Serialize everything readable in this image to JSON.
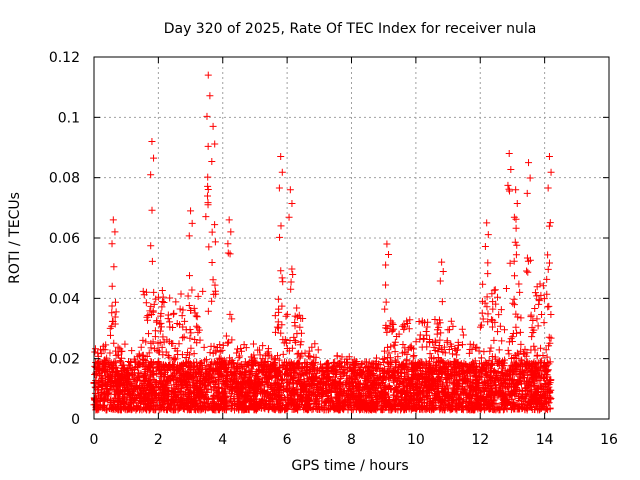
{
  "chart_data": {
    "type": "scatter",
    "title": "Day 320 of 2025, Rate Of TEC Index for receiver nula",
    "xlabel": "GPS time / hours",
    "ylabel": "ROTI / TECUs",
    "xlim": [
      0,
      16
    ],
    "ylim": [
      0,
      0.12
    ],
    "xticks": [
      0,
      2,
      4,
      6,
      8,
      10,
      12,
      14,
      16
    ],
    "yticks": [
      0,
      0.02,
      0.04,
      0.06,
      0.08,
      0.1,
      0.12
    ],
    "xtick_labels": [
      "0",
      "2",
      "4",
      "6",
      "8",
      "10",
      "12",
      "14",
      "16"
    ],
    "ytick_labels": [
      "0",
      "0.02",
      "0.04",
      "0.06",
      "0.08",
      "0.1",
      "0.12"
    ],
    "grid": true,
    "marker": "+",
    "color": "#ff0000",
    "data_range_x": [
      0,
      14.2
    ],
    "base_level": 0.01,
    "peaks": [
      {
        "x": 0.6,
        "y": 0.066
      },
      {
        "x": 1.8,
        "y": 0.092
      },
      {
        "x": 3.0,
        "y": 0.069
      },
      {
        "x": 3.55,
        "y": 0.114
      },
      {
        "x": 3.7,
        "y": 0.097
      },
      {
        "x": 4.2,
        "y": 0.066
      },
      {
        "x": 5.8,
        "y": 0.087
      },
      {
        "x": 6.1,
        "y": 0.076
      },
      {
        "x": 9.1,
        "y": 0.058
      },
      {
        "x": 10.8,
        "y": 0.052
      },
      {
        "x": 12.2,
        "y": 0.065
      },
      {
        "x": 12.9,
        "y": 0.088
      },
      {
        "x": 13.1,
        "y": 0.076
      },
      {
        "x": 13.5,
        "y": 0.085
      },
      {
        "x": 14.15,
        "y": 0.087
      }
    ]
  }
}
